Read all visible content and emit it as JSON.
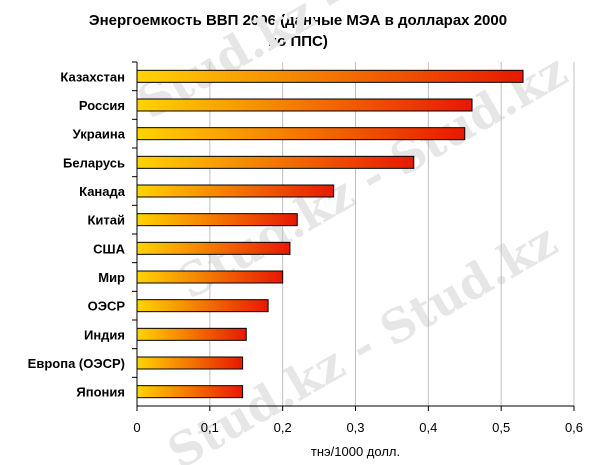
{
  "chart_data": {
    "type": "bar",
    "orientation": "horizontal",
    "title_lines": [
      "Энергоемкость ВВП 2006 (данные МЭА в долларах 2000",
      "по ППС)"
    ],
    "categories": [
      "Казахстан",
      "Россия",
      "Украина",
      "Беларусь",
      "Канада",
      "Китай",
      "США",
      "Мир",
      "ОЭСР",
      "Индия",
      "Европа (ОЭСР)",
      "Япония"
    ],
    "values": [
      0.53,
      0.46,
      0.45,
      0.38,
      0.27,
      0.22,
      0.21,
      0.2,
      0.18,
      0.15,
      0.145,
      0.145
    ],
    "xlabel": "тнэ/1000 долл.",
    "ylabel": "",
    "xlim": [
      0,
      0.6
    ],
    "xticks": [
      "0",
      "0,1",
      "0,2",
      "0,3",
      "0,4",
      "0,5",
      "0,6"
    ],
    "grid": "vertical",
    "bar_gradient": [
      "#ffd400",
      "#e81800"
    ],
    "bar_border": "#000000",
    "grid_color": "#c0c0c0"
  },
  "watermark": "Stud.kz - Stud.kz"
}
